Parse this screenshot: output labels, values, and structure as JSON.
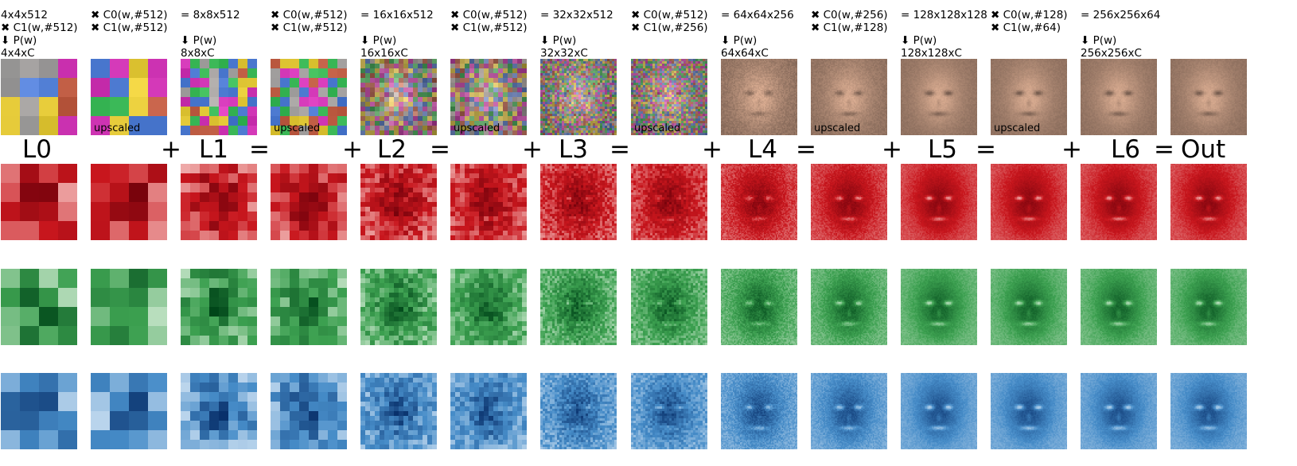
{
  "columns": [
    {
      "lines": [
        "4x4x512",
        "✖ C1(w,#512)",
        "⬇ P(w)",
        "4x4xC"
      ],
      "tag": ""
    },
    {
      "lines": [
        "✖ C0(w,#512)",
        "✖ C1(w,#512)"
      ],
      "tag": "upscaled"
    },
    {
      "lines": [
        "= 8x8x512",
        "",
        "⬇ P(w)",
        "8x8xC"
      ],
      "tag": ""
    },
    {
      "lines": [
        "✖ C0(w,#512)",
        "✖ C1(w,#512)"
      ],
      "tag": "upscaled"
    },
    {
      "lines": [
        "= 16x16x512",
        "",
        "⬇ P(w)",
        "16x16xC"
      ],
      "tag": ""
    },
    {
      "lines": [
        "✖ C0(w,#512)",
        "✖ C1(w,#512)"
      ],
      "tag": "upscaled"
    },
    {
      "lines": [
        "= 32x32x512",
        "",
        "⬇ P(w)",
        "32x32xC"
      ],
      "tag": ""
    },
    {
      "lines": [
        "✖ C0(w,#512)",
        "✖ C1(w,#256)"
      ],
      "tag": "upscaled"
    },
    {
      "lines": [
        "= 64x64x256",
        "",
        "⬇ P(w)",
        "64x64xC"
      ],
      "tag": ""
    },
    {
      "lines": [
        "✖ C0(w,#256)",
        "✖ C1(w,#128)"
      ],
      "tag": "upscaled"
    },
    {
      "lines": [
        "= 128x128x128",
        "",
        "⬇ P(w)",
        "128x128xC"
      ],
      "tag": ""
    },
    {
      "lines": [
        "✖ C0(w,#128)",
        "✖ C1(w,#64)"
      ],
      "tag": "upscaled"
    },
    {
      "lines": [
        "= 256x256x64",
        "",
        "⬇ P(w)",
        "256x256xC"
      ],
      "tag": ""
    },
    {
      "lines": [],
      "tag": ""
    }
  ],
  "labels": [
    "L0",
    "+",
    "L1",
    "=",
    "+",
    "L2",
    "=",
    "+",
    "L3",
    "=",
    "+",
    "L4",
    "=",
    "+",
    "L5",
    "=",
    "+",
    "L6",
    "=",
    "Out"
  ],
  "channels": [
    {
      "name": "red",
      "color": "#c8161d"
    },
    {
      "name": "green",
      "color": "#137a3a"
    },
    {
      "name": "blue",
      "color": "#1a5fa8"
    }
  ]
}
